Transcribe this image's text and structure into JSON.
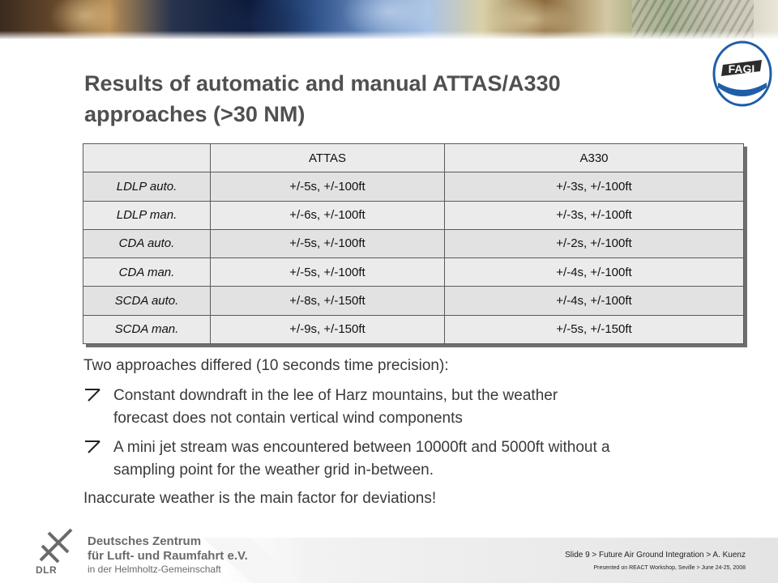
{
  "header": {
    "title_line1": "Results of automatic and manual ATTAS/A330",
    "title_line2": "approaches (>30 NM)",
    "logo_text": "FAGI"
  },
  "table": {
    "columns": [
      "",
      "ATTAS",
      "A330"
    ],
    "rows": [
      {
        "label": "LDLP auto.",
        "attas": "+/-5s, +/-100ft",
        "a330": "+/-3s, +/-100ft"
      },
      {
        "label": "LDLP man.",
        "attas": "+/-6s, +/-100ft",
        "a330": "+/-3s, +/-100ft"
      },
      {
        "label": "CDA auto.",
        "attas": "+/-5s, +/-100ft",
        "a330": "+/-2s, +/-100ft"
      },
      {
        "label": "CDA man.",
        "attas": "+/-5s, +/-100ft",
        "a330": "+/-4s, +/-100ft"
      },
      {
        "label": "SCDA auto.",
        "attas": "+/-8s, +/-150ft",
        "a330": "+/-4s, +/-100ft"
      },
      {
        "label": "SCDA man.",
        "attas": "+/-9s, +/-150ft",
        "a330": "+/-5s, +/-150ft"
      }
    ]
  },
  "body": {
    "intro": "Two approaches differed (10 seconds time precision):",
    "bullets": [
      {
        "line1": "Constant downdraft in the lee of Harz mountains, but the weather",
        "line2": "forecast does not contain vertical wind components"
      },
      {
        "line1": "A mini jet stream was encountered between 10000ft and 5000ft without a",
        "line2": "sampling point for the weather grid in-between."
      }
    ],
    "conclusion": "Inaccurate weather is the main factor for deviations!"
  },
  "footer": {
    "org_line1": "Deutsches Zentrum",
    "org_line2": "für Luft- und Raumfahrt e.V.",
    "org_line3": "in der Helmholtz-Gemeinschaft",
    "dlr_word": "DLR",
    "slide_ref": "Slide 9 > Future Air Ground Integration > A. Kuenz",
    "presented": "Presented on REACT Workshop, Seville > June 24-25, 2008"
  },
  "colors": {
    "title": "#505050",
    "table_bg": "#ebebeb",
    "body_text": "#3a3a3a",
    "logo_blue": "#1f5ea8"
  },
  "icons": [
    "fagi-logo-icon",
    "dlr-logo-icon",
    "bullet-arrow-icon"
  ]
}
